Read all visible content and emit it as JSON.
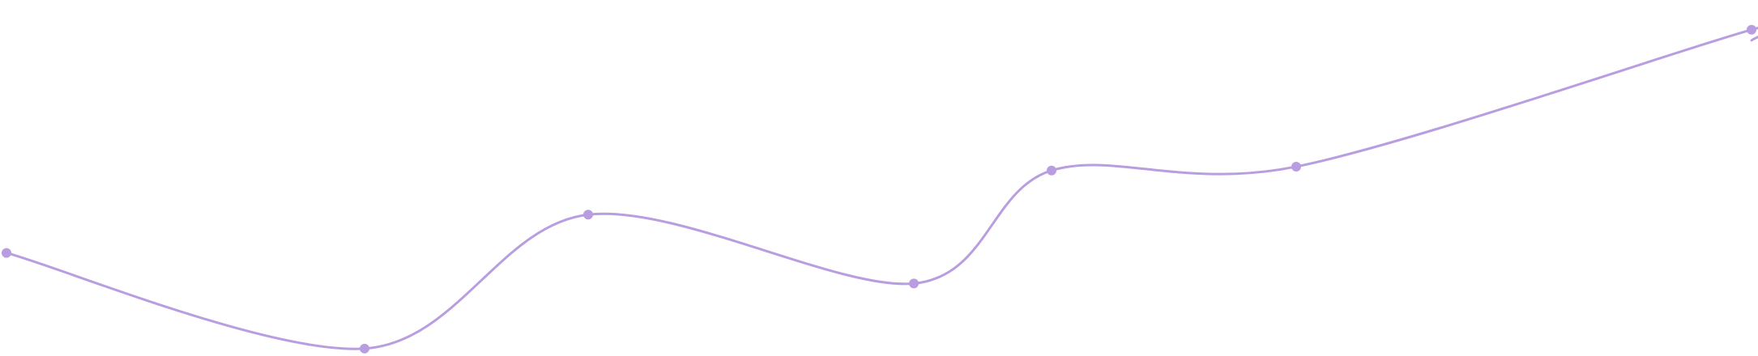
{
  "chart_data": {
    "type": "line",
    "title": "",
    "xlabel": "",
    "ylabel": "",
    "grid": false,
    "legend": "none",
    "x": [
      0,
      1,
      2,
      3,
      4,
      5,
      6,
      7
    ],
    "xlim": [
      0,
      7
    ],
    "ylim": [
      0,
      100
    ],
    "series": [
      {
        "values": [
          30.5,
          0.8,
          42.4,
          21.0,
          56.1,
          57.3,
          99.8,
          96.5
        ],
        "color": "#b89ee0",
        "curve": "smooth",
        "markers": true
      }
    ]
  }
}
